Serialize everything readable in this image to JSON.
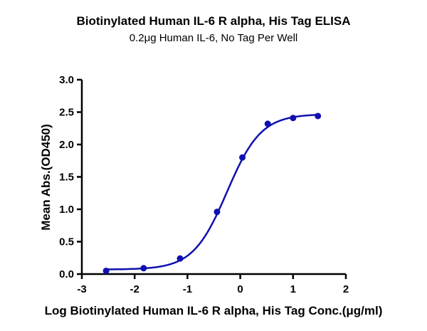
{
  "chart_data": {
    "type": "scatter",
    "title": "Biotinylated Human IL-6 R alpha, His Tag ELISA",
    "subtitle": "0.2μg Human IL-6, No Tag Per Well",
    "xlabel": "Log Biotinylated Human IL-6 R alpha, His Tag Conc.(μg/ml)",
    "ylabel": "Mean Abs.(OD450)",
    "xlim": [
      -3,
      2
    ],
    "ylim": [
      0,
      3.0
    ],
    "xticks": [
      "-3",
      "-2",
      "-1",
      "0",
      "1",
      "2"
    ],
    "yticks": [
      "0.0",
      "0.5",
      "1.0",
      "1.5",
      "2.0",
      "2.5",
      "3.0"
    ],
    "grid": false,
    "color": "#1010b0",
    "series": [
      {
        "x": [
          -2.54,
          -1.83,
          -1.14,
          -0.44,
          0.04,
          0.52,
          1.0,
          1.47
        ],
        "y": [
          0.05,
          0.09,
          0.24,
          0.96,
          1.8,
          2.32,
          2.41,
          2.44
        ]
      }
    ],
    "fit": {
      "type": "4PL",
      "bottom": 0.07,
      "top": 2.47,
      "logEC50": -0.25,
      "hill": 1.35
    }
  }
}
